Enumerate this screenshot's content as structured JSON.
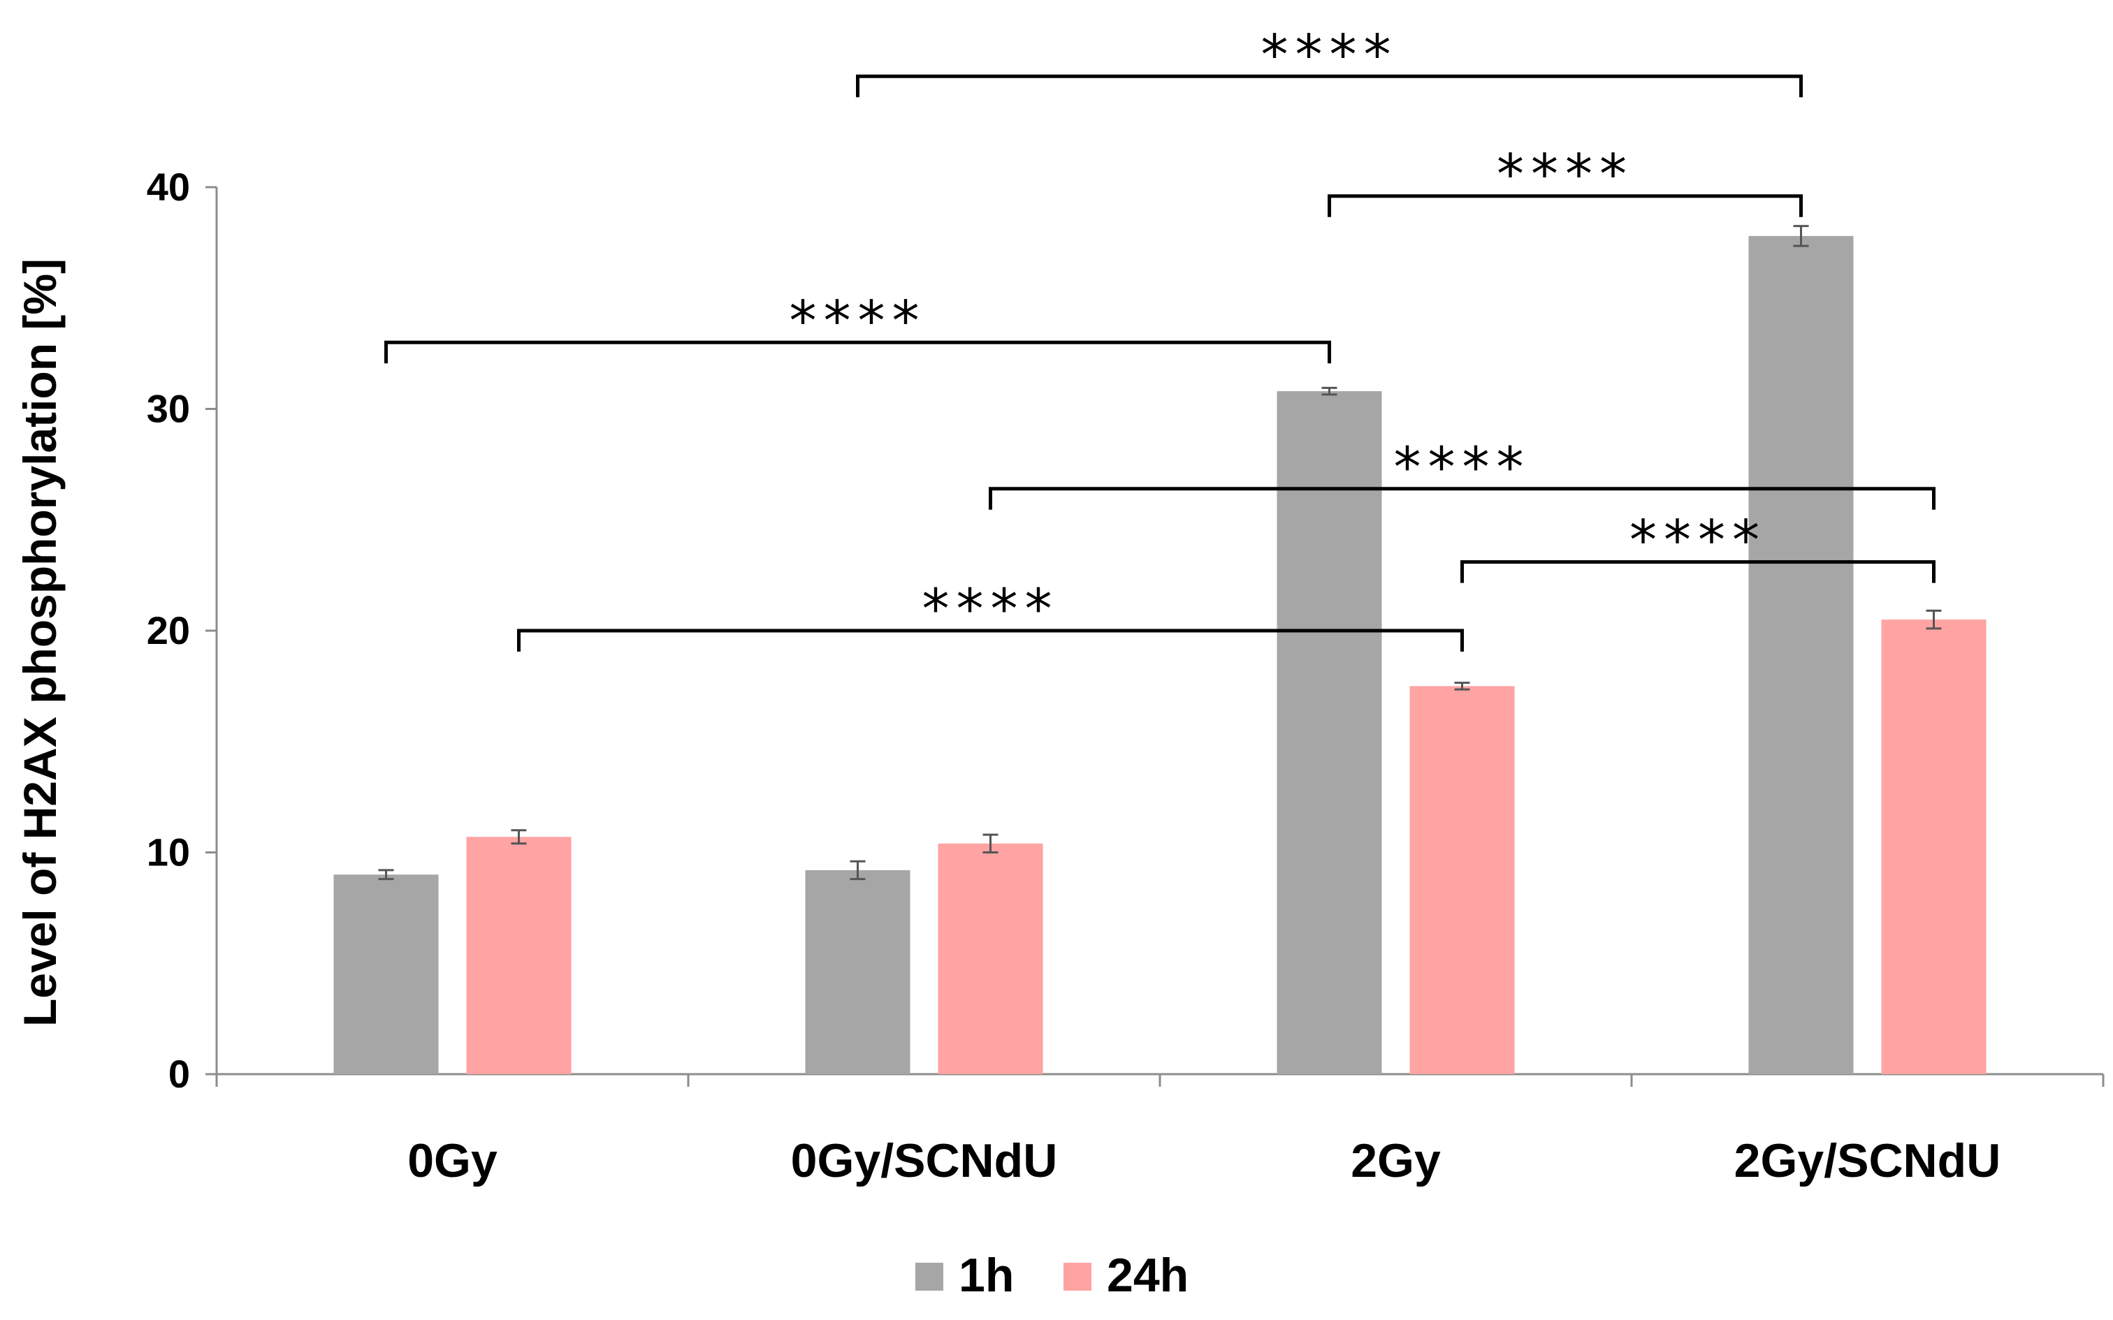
{
  "chart_data": {
    "type": "bar",
    "title": "",
    "xlabel": "",
    "ylabel": "Level of H2AX phosphorylation [%]",
    "ylim": [
      0,
      40
    ],
    "yticks": [
      0,
      10,
      20,
      30,
      40
    ],
    "categories": [
      "0Gy",
      "0Gy/SCNdU",
      "2Gy",
      "2Gy/SCNdU"
    ],
    "series": [
      {
        "name": "1h",
        "color": "#a6a6a6",
        "values": [
          9.0,
          9.2,
          30.8,
          37.8
        ],
        "errors": [
          0.2,
          0.4,
          0.15,
          0.45
        ]
      },
      {
        "name": "24h",
        "color": "#ffa3a3",
        "values": [
          10.7,
          10.4,
          17.5,
          20.5
        ],
        "errors": [
          0.3,
          0.4,
          0.15,
          0.4
        ]
      }
    ],
    "legend": {
      "position": "bottom-center"
    },
    "significance": [
      {
        "label": "****",
        "from": {
          "category": 0,
          "series": 0
        },
        "to": {
          "category": 2,
          "series": 0
        },
        "level": 33
      },
      {
        "label": "****",
        "from": {
          "category": 0,
          "series": 1
        },
        "to": {
          "category": 2,
          "series": 1
        },
        "level": 20
      },
      {
        "label": "****",
        "from": {
          "category": 1,
          "series": 0
        },
        "to": {
          "category": 3,
          "series": 0
        },
        "level": 45
      },
      {
        "label": "****",
        "from": {
          "category": 1,
          "series": 1
        },
        "to": {
          "category": 3,
          "series": 1
        },
        "level": 26.4
      },
      {
        "label": "****",
        "from": {
          "category": 2,
          "series": 0
        },
        "to": {
          "category": 3,
          "series": 0
        },
        "level": 39.6
      },
      {
        "label": "****",
        "from": {
          "category": 2,
          "series": 1
        },
        "to": {
          "category": 3,
          "series": 1
        },
        "level": 23.1
      }
    ]
  }
}
